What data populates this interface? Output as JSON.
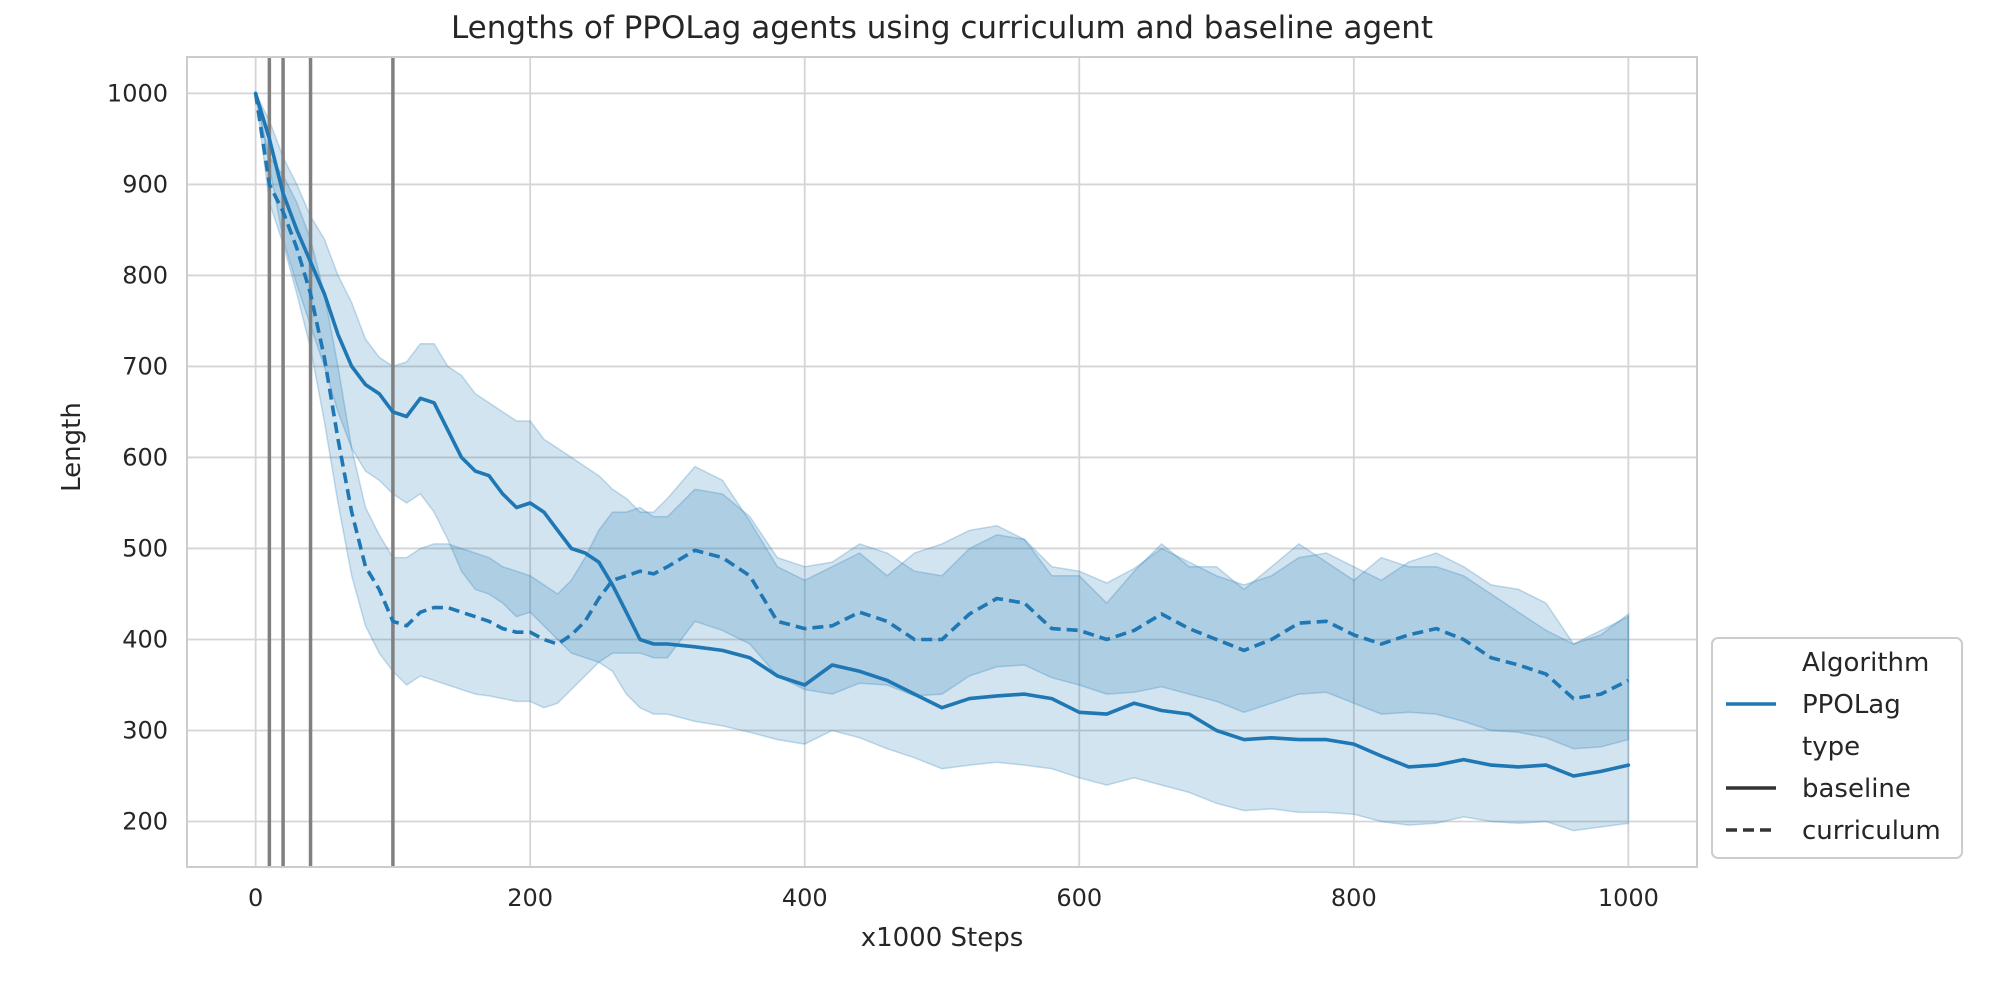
{
  "chart_data": {
    "type": "line",
    "title": "Lengths of PPOLag agents using curriculum and baseline agent",
    "xlabel": "x1000 Steps",
    "ylabel": "Length",
    "xlim": [
      -50,
      1050
    ],
    "ylim": [
      150,
      1040
    ],
    "x_ticks": [
      0,
      200,
      400,
      600,
      800,
      1000
    ],
    "y_ticks": [
      200,
      300,
      400,
      500,
      600,
      700,
      800,
      900,
      1000
    ],
    "grid": true,
    "vertical_markers": [
      10,
      20,
      40,
      100
    ],
    "legend": {
      "placement": "lower-right-outside",
      "entries": [
        {
          "kind": "header",
          "text": "Algorithm"
        },
        {
          "kind": "line",
          "style": "solid",
          "color": "#1f77b4",
          "text": "PPOLag"
        },
        {
          "kind": "header",
          "text": "type"
        },
        {
          "kind": "line",
          "style": "solid",
          "color": "#333333",
          "text": "baseline"
        },
        {
          "kind": "line",
          "style": "dashed",
          "color": "#333333",
          "text": "curriculum"
        }
      ]
    },
    "series": [
      {
        "name": "baseline",
        "algorithm": "PPOLag",
        "style": "solid",
        "color": "#1f77b4",
        "x": [
          0,
          10,
          20,
          30,
          40,
          50,
          60,
          70,
          80,
          90,
          100,
          110,
          120,
          130,
          140,
          150,
          160,
          170,
          180,
          190,
          200,
          210,
          220,
          230,
          240,
          250,
          260,
          270,
          280,
          290,
          300,
          320,
          340,
          360,
          380,
          400,
          420,
          440,
          460,
          480,
          500,
          520,
          540,
          560,
          580,
          600,
          620,
          640,
          660,
          680,
          700,
          720,
          740,
          760,
          780,
          800,
          820,
          840,
          860,
          880,
          900,
          920,
          940,
          960,
          980,
          1000
        ],
        "y": [
          1000,
          950,
          890,
          850,
          815,
          780,
          735,
          700,
          680,
          670,
          650,
          645,
          665,
          660,
          630,
          600,
          585,
          580,
          560,
          545,
          550,
          540,
          520,
          500,
          495,
          485,
          460,
          430,
          400,
          395,
          395,
          392,
          388,
          380,
          360,
          350,
          372,
          365,
          355,
          340,
          325,
          335,
          338,
          340,
          335,
          320,
          318,
          330,
          322,
          318,
          300,
          290,
          292,
          290,
          290,
          285,
          272,
          260,
          262,
          268,
          262,
          260,
          262,
          250,
          255,
          262
        ],
        "lower": [
          1000,
          920,
          840,
          790,
          745,
          700,
          650,
          610,
          585,
          575,
          560,
          550,
          560,
          540,
          510,
          475,
          455,
          450,
          440,
          425,
          430,
          415,
          400,
          385,
          380,
          375,
          365,
          340,
          325,
          318,
          318,
          310,
          305,
          298,
          290,
          285,
          300,
          292,
          280,
          270,
          258,
          262,
          265,
          262,
          258,
          248,
          240,
          248,
          240,
          232,
          220,
          212,
          214,
          210,
          210,
          208,
          200,
          196,
          198,
          205,
          200,
          198,
          200,
          190,
          194,
          198
        ],
        "upper": [
          1000,
          970,
          930,
          900,
          865,
          840,
          800,
          770,
          730,
          710,
          700,
          705,
          725,
          725,
          700,
          690,
          670,
          660,
          650,
          640,
          640,
          620,
          610,
          600,
          590,
          580,
          565,
          555,
          540,
          540,
          555,
          590,
          575,
          530,
          480,
          465,
          480,
          495,
          470,
          495,
          505,
          520,
          525,
          510,
          470,
          470,
          440,
          475,
          505,
          480,
          480,
          455,
          480,
          505,
          485,
          465,
          490,
          480,
          480,
          470,
          450,
          430,
          410,
          395,
          405,
          428
        ]
      },
      {
        "name": "curriculum",
        "algorithm": "PPOLag",
        "style": "dashed",
        "color": "#1f77b4",
        "x": [
          0,
          10,
          20,
          30,
          40,
          50,
          60,
          70,
          80,
          90,
          100,
          110,
          120,
          130,
          140,
          150,
          160,
          170,
          180,
          190,
          200,
          210,
          220,
          230,
          240,
          250,
          260,
          270,
          280,
          290,
          300,
          320,
          340,
          360,
          380,
          400,
          420,
          440,
          460,
          480,
          500,
          520,
          540,
          560,
          580,
          600,
          620,
          640,
          660,
          680,
          700,
          720,
          740,
          760,
          780,
          800,
          820,
          840,
          860,
          880,
          900,
          920,
          940,
          960,
          980,
          1000
        ],
        "y": [
          1000,
          900,
          870,
          830,
          780,
          710,
          620,
          540,
          480,
          455,
          420,
          415,
          430,
          435,
          435,
          430,
          425,
          420,
          412,
          408,
          408,
          400,
          395,
          405,
          420,
          445,
          465,
          470,
          475,
          472,
          480,
          498,
          490,
          470,
          420,
          412,
          415,
          430,
          420,
          400,
          400,
          428,
          445,
          440,
          412,
          410,
          400,
          410,
          428,
          412,
          400,
          388,
          400,
          418,
          420,
          405,
          395,
          405,
          412,
          400,
          380,
          372,
          362,
          335,
          340,
          355
        ],
        "lower": [
          1000,
          880,
          835,
          780,
          720,
          640,
          550,
          470,
          415,
          385,
          365,
          350,
          360,
          355,
          350,
          345,
          340,
          338,
          335,
          332,
          332,
          325,
          330,
          345,
          360,
          375,
          385,
          385,
          385,
          380,
          380,
          420,
          410,
          395,
          360,
          345,
          340,
          352,
          350,
          338,
          340,
          360,
          370,
          372,
          358,
          350,
          340,
          342,
          348,
          340,
          332,
          320,
          330,
          340,
          342,
          330,
          318,
          320,
          318,
          310,
          300,
          298,
          292,
          280,
          282,
          290
        ],
        "upper": [
          1000,
          930,
          910,
          880,
          840,
          780,
          700,
          610,
          545,
          515,
          490,
          490,
          500,
          505,
          505,
          500,
          495,
          490,
          480,
          475,
          470,
          460,
          450,
          465,
          490,
          520,
          540,
          540,
          545,
          535,
          535,
          565,
          560,
          535,
          490,
          480,
          485,
          505,
          495,
          475,
          470,
          500,
          515,
          510,
          480,
          475,
          462,
          478,
          500,
          485,
          470,
          460,
          470,
          490,
          495,
          480,
          465,
          485,
          495,
          480,
          460,
          455,
          440,
          395,
          410,
          425
        ]
      }
    ]
  }
}
